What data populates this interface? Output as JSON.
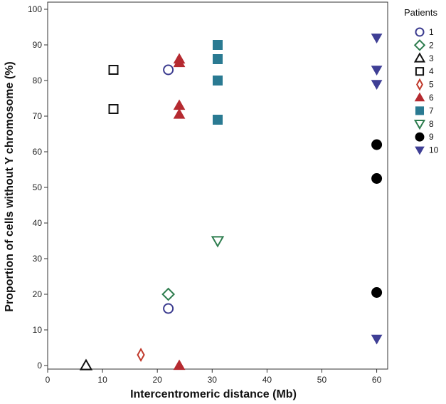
{
  "chart_data": {
    "type": "scatter",
    "xlabel": "Intercentromeric distance (Mb)",
    "ylabel": "Proportion of cells without Y chromosome (%)",
    "xlim": [
      0,
      62
    ],
    "ylim": [
      -1,
      102
    ],
    "x_ticks": [
      0,
      10,
      20,
      30,
      40,
      50,
      60
    ],
    "y_ticks": [
      0,
      10,
      20,
      30,
      40,
      50,
      60,
      70,
      80,
      90,
      100
    ],
    "grid": false,
    "legend_title": "Patients",
    "legend_position": "right",
    "series": [
      {
        "name": "1",
        "marker": "circle-open",
        "color": "#3b3b8f",
        "points": [
          [
            22,
            83
          ],
          [
            22,
            16
          ]
        ]
      },
      {
        "name": "2",
        "marker": "diamond-open",
        "color": "#2e7d4f",
        "points": [
          [
            22,
            20
          ]
        ]
      },
      {
        "name": "3",
        "marker": "triangle-open",
        "color": "#111111",
        "points": [
          [
            7,
            0
          ]
        ]
      },
      {
        "name": "4",
        "marker": "square-open",
        "color": "#111111",
        "points": [
          [
            12,
            83
          ],
          [
            12,
            72
          ]
        ]
      },
      {
        "name": "5",
        "marker": "thin-diamond-open",
        "color": "#c0392b",
        "points": [
          [
            17,
            3
          ]
        ]
      },
      {
        "name": "6",
        "marker": "triangle-filled",
        "color": "#b52a30",
        "points": [
          [
            24,
            86
          ],
          [
            24,
            85
          ],
          [
            24,
            73
          ],
          [
            24,
            70.5
          ],
          [
            24,
            0
          ]
        ]
      },
      {
        "name": "7",
        "marker": "square-filled",
        "color": "#2a7a92",
        "points": [
          [
            31,
            90
          ],
          [
            31,
            86
          ],
          [
            31,
            80
          ],
          [
            31,
            69
          ]
        ]
      },
      {
        "name": "8",
        "marker": "triangle-down-open",
        "color": "#2e7d4f",
        "points": [
          [
            31,
            35
          ]
        ]
      },
      {
        "name": "9",
        "marker": "circle-filled",
        "color": "#000000",
        "points": [
          [
            60,
            62
          ],
          [
            60,
            52.5
          ],
          [
            60,
            20.5
          ]
        ]
      },
      {
        "name": "10",
        "marker": "triangle-down-filled",
        "color": "#3f3f95",
        "points": [
          [
            60,
            92
          ],
          [
            60,
            83
          ],
          [
            60,
            79
          ],
          [
            60,
            7.5
          ]
        ]
      }
    ]
  }
}
